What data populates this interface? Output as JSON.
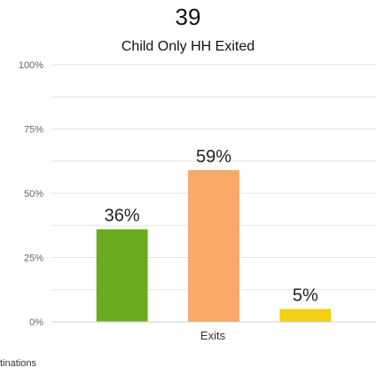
{
  "chart_data": {
    "type": "bar",
    "headline": "39",
    "title": "Child Only HH Exited",
    "xlabel": "Exits",
    "ylabel": "",
    "ylim": [
      0,
      100
    ],
    "y_ticks": [
      "0%",
      "25%",
      "50%",
      "75%",
      "100%"
    ],
    "y_tick_values": [
      0,
      25,
      50,
      75,
      100
    ],
    "minor_gridlines": [
      12.5,
      37.5,
      62.5,
      87.5
    ],
    "grid": true,
    "legend": "none",
    "series": [
      {
        "values": [
          36
        ],
        "data_label": "36%",
        "color": "#6aab1f"
      },
      {
        "values": [
          59
        ],
        "data_label": "59%",
        "color": "#f7a967"
      },
      {
        "values": [
          5
        ],
        "data_label": "5%",
        "color": "#f1d016"
      }
    ]
  },
  "footnote": "tinations"
}
